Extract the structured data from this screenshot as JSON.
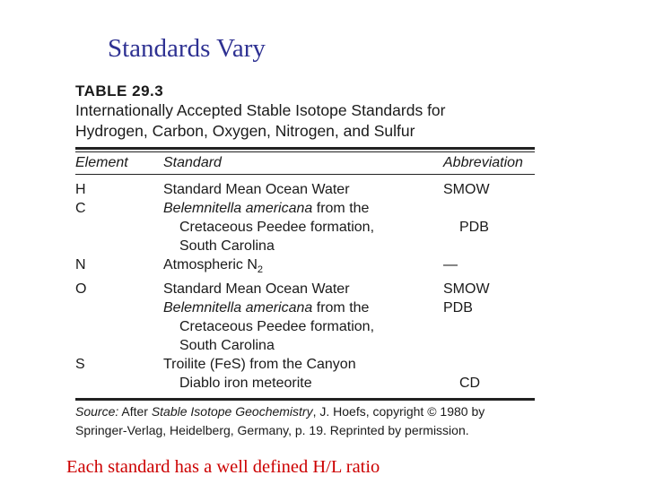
{
  "slide": {
    "title": "Standards Vary",
    "footer": "Each standard has a well defined H/L ratio"
  },
  "table": {
    "label": "TABLE 29.3",
    "caption_line1": "Internationally Accepted Stable Isotope Standards for",
    "caption_line2": "Hydrogen, Carbon, Oxygen, Nitrogen, and Sulfur",
    "headers": {
      "element": "Element",
      "standard": "Standard",
      "abbreviation": "Abbreviation"
    },
    "rows": [
      {
        "element": "H",
        "standard": "Standard Mean Ocean Water",
        "italic": false,
        "indent": false,
        "abbreviation": "SMOW"
      },
      {
        "element": "C",
        "standard": "Belemnitella americana",
        "standard_rest": " from the",
        "italic": true,
        "indent": false,
        "abbreviation": ""
      },
      {
        "element": "",
        "standard": "Cretaceous Peedee formation,",
        "italic": false,
        "indent": true,
        "abbreviation": "PDB"
      },
      {
        "element": "",
        "standard": "South Carolina",
        "italic": false,
        "indent": true,
        "abbreviation": ""
      },
      {
        "element": "N",
        "standard": "Atmospheric N",
        "subscript": "2",
        "italic": false,
        "indent": false,
        "abbreviation": "—"
      },
      {
        "element": "O",
        "standard": "Standard Mean Ocean Water",
        "italic": false,
        "indent": false,
        "abbreviation": "SMOW"
      },
      {
        "element": "",
        "standard": "Belemnitella americana",
        "standard_rest": " from the",
        "italic": true,
        "indent": false,
        "abbreviation": "PDB"
      },
      {
        "element": "",
        "standard": "Cretaceous Peedee formation,",
        "italic": false,
        "indent": true,
        "abbreviation": ""
      },
      {
        "element": "",
        "standard": "South Carolina",
        "italic": false,
        "indent": true,
        "abbreviation": ""
      },
      {
        "element": "S",
        "standard": "Troilite (FeS) from the Canyon",
        "italic": false,
        "indent": false,
        "abbreviation": ""
      },
      {
        "element": "",
        "standard": "Diablo iron meteorite",
        "italic": false,
        "indent": true,
        "abbreviation": "CD"
      }
    ],
    "source": {
      "label": "Source:",
      "text1": " After ",
      "book": "Stable Isotope Geochemistry",
      "text2": ", J. Hoefs, copyright © 1980 by",
      "line2": "Springer-Verlag, Heidelberg, Germany, p. 19. Reprinted by permission."
    }
  }
}
